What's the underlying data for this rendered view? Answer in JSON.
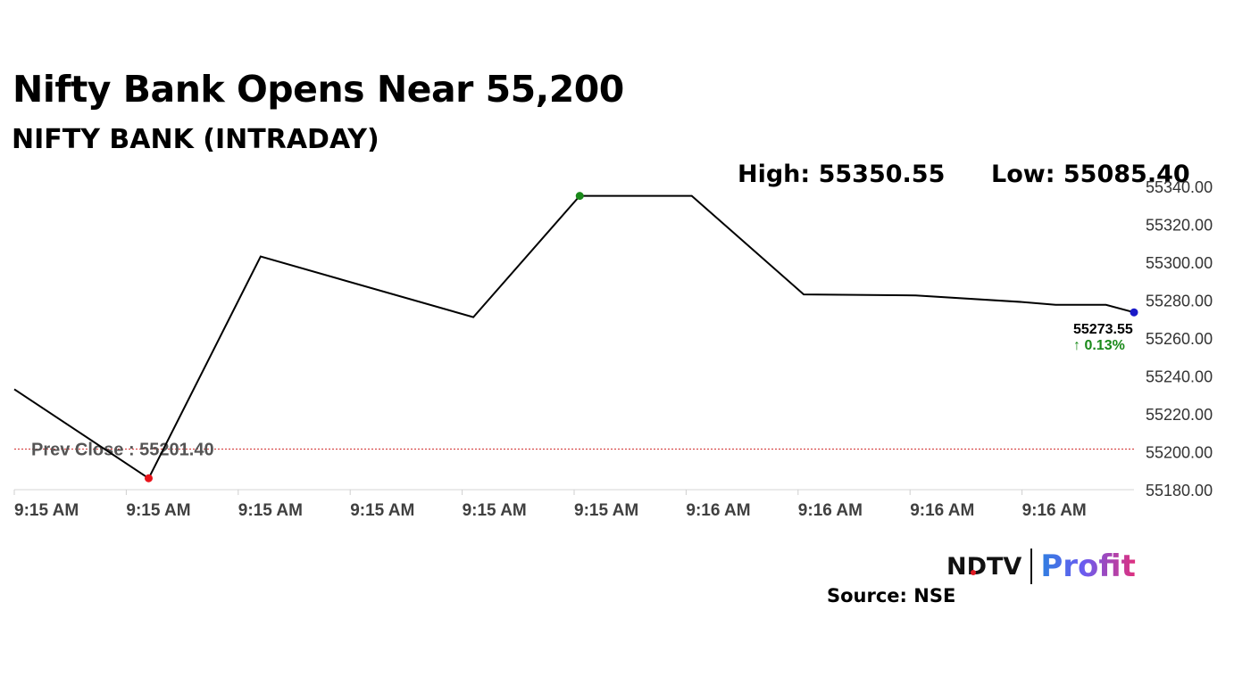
{
  "header": {
    "title": "Nifty Bank Opens Near 55,200",
    "subtitle": "NIFTY BANK (INTRADAY)",
    "high_label": "High: 55350.55",
    "low_label": "Low: 55085.40"
  },
  "chart_data": {
    "type": "line",
    "x_tick_labels": [
      "9:15 AM",
      "9:15 AM",
      "9:15 AM",
      "9:15 AM",
      "9:15 AM",
      "9:15 AM",
      "9:16 AM",
      "9:16 AM",
      "9:16 AM",
      "9:16 AM"
    ],
    "y_tick_labels": [
      "55180.00",
      "55200.00",
      "55220.00",
      "55240.00",
      "55260.00",
      "55280.00",
      "55300.00",
      "55320.00",
      "55340.00"
    ],
    "ylim": [
      55180,
      55340
    ],
    "grid": false,
    "series": [
      {
        "points": [
          {
            "x": 0.0,
            "y": 55233
          },
          {
            "x": 1.2,
            "y": 55186
          },
          {
            "x": 2.2,
            "y": 55303
          },
          {
            "x": 4.1,
            "y": 55271
          },
          {
            "x": 5.05,
            "y": 55335
          },
          {
            "x": 6.05,
            "y": 55335
          },
          {
            "x": 7.05,
            "y": 55283
          },
          {
            "x": 8.05,
            "y": 55282.5
          },
          {
            "x": 9.0,
            "y": 55279
          },
          {
            "x": 9.3,
            "y": 55277.5
          },
          {
            "x": 9.75,
            "y": 55277.5
          },
          {
            "x": 10.0,
            "y": 55273.55
          }
        ]
      }
    ],
    "xlim": [
      0,
      10
    ],
    "markers": [
      {
        "x": 1.2,
        "y": 55186,
        "color": "#e8141b"
      },
      {
        "x": 5.05,
        "y": 55335,
        "color": "#1a8a1a"
      },
      {
        "x": 10.0,
        "y": 55273.55,
        "color": "#1a1ac8"
      }
    ],
    "reference_line": {
      "y": 55201.4,
      "label": "Prev Close : 55201.40",
      "color": "#d33030"
    },
    "last_value_label": "55273.55",
    "change_label": "↑ 0.13%",
    "change_color": "#1a8a1a",
    "line_color": "#000000"
  },
  "footer": {
    "brand_left": "NDTV",
    "brand_right": "Profit",
    "source": "Source: NSE"
  }
}
